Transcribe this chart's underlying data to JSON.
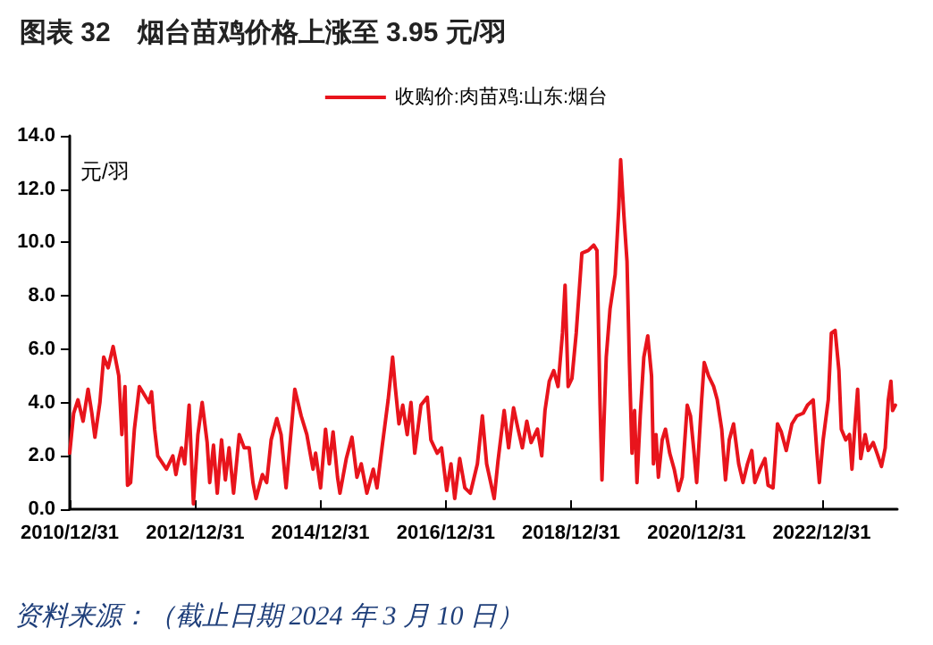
{
  "chart_data": {
    "type": "line",
    "title": "图表 32　烟台苗鸡价格上涨至 3.95 元/羽",
    "ylabel": "元/羽",
    "annotations": [
      "资料来源：（截止日期 2024 年 3 月 10 日）"
    ],
    "xlim": [
      "2010-12-31",
      "2024-03-15"
    ],
    "xticks": [
      {
        "value": "2010-12-31",
        "label": "2010/12/31"
      },
      {
        "value": "2012-12-31",
        "label": "2012/12/31"
      },
      {
        "value": "2014-12-31",
        "label": "2014/12/31"
      },
      {
        "value": "2016-12-31",
        "label": "2016/12/31"
      },
      {
        "value": "2018-12-31",
        "label": "2018/12/31"
      },
      {
        "value": "2020-12-31",
        "label": "2020/12/31"
      },
      {
        "value": "2022-12-31",
        "label": "2022/12/31"
      }
    ],
    "ylim": [
      0,
      14
    ],
    "yticks": [
      {
        "value": 0,
        "label": "0.0"
      },
      {
        "value": 2,
        "label": "2.0"
      },
      {
        "value": 4,
        "label": "4.0"
      },
      {
        "value": 6,
        "label": "6.0"
      },
      {
        "value": 8,
        "label": "8.0"
      },
      {
        "value": 10,
        "label": "10.0"
      },
      {
        "value": 12,
        "label": "12.0"
      },
      {
        "value": 14,
        "label": "14.0"
      }
    ],
    "grid": false,
    "legend": "top",
    "marker": "none",
    "line_style": "solid",
    "series": [
      {
        "name": "收购价:肉苗鸡:山东:烟台",
        "color": "#e8141c",
        "x": [
          "2010-12-31",
          "2011-01-23",
          "2011-02-17",
          "2011-03-19",
          "2011-04-17",
          "2011-05-09",
          "2011-05-27",
          "2011-06-25",
          "2011-07-17",
          "2011-08-12",
          "2011-09-10",
          "2011-10-13",
          "2011-10-31",
          "2011-11-18",
          "2011-12-03",
          "2011-12-21",
          "2012-01-12",
          "2012-02-10",
          "2012-04-06",
          "2012-04-21",
          "2012-05-09",
          "2012-05-27",
          "2012-07-17",
          "2012-08-23",
          "2012-09-10",
          "2012-09-24",
          "2012-10-13",
          "2012-10-31",
          "2012-11-26",
          "2012-12-21",
          "2013-01-16",
          "2013-02-10",
          "2013-03-11",
          "2013-03-26",
          "2013-04-17",
          "2013-05-09",
          "2013-06-03",
          "2013-06-25",
          "2013-07-17",
          "2013-08-12",
          "2013-09-14",
          "2013-10-13",
          "2013-11-11",
          "2013-12-03",
          "2013-12-21",
          "2014-01-27",
          "2014-02-21",
          "2014-03-19",
          "2014-04-21",
          "2014-05-16",
          "2014-06-14",
          "2014-08-04",
          "2014-09-10",
          "2014-10-13",
          "2014-11-18",
          "2014-12-03",
          "2015-01-01",
          "2015-01-30",
          "2015-02-21",
          "2015-03-15",
          "2015-04-10",
          "2015-04-24",
          "2015-05-31",
          "2015-07-03",
          "2015-08-01",
          "2015-08-26",
          "2015-09-28",
          "2015-11-04",
          "2015-11-26",
          "2015-12-25",
          "2016-01-30",
          "2016-02-25",
          "2016-03-11",
          "2016-04-02",
          "2016-04-24",
          "2016-05-20",
          "2016-06-11",
          "2016-07-03",
          "2016-08-08",
          "2016-09-14",
          "2016-10-05",
          "2016-11-11",
          "2016-12-06",
          "2017-01-05",
          "2017-01-30",
          "2017-02-21",
          "2017-03-22",
          "2017-04-21",
          "2017-05-23",
          "2017-07-03",
          "2017-08-01",
          "2017-08-26",
          "2017-10-09",
          "2017-10-31",
          "2017-12-06",
          "2018-01-01",
          "2018-01-30",
          "2018-02-25",
          "2018-03-22",
          "2018-04-17",
          "2018-05-12",
          "2018-06-18",
          "2018-07-13",
          "2018-08-01",
          "2018-08-26",
          "2018-09-21",
          "2018-10-16",
          "2018-11-11",
          "2018-11-26",
          "2018-12-14",
          "2019-01-05",
          "2019-01-30",
          "2019-03-04",
          "2019-04-10",
          "2019-05-12",
          "2019-05-31",
          "2019-06-18",
          "2019-06-29",
          "2019-07-24",
          "2019-08-15",
          "2019-09-14",
          "2019-10-05",
          "2019-10-16",
          "2019-11-04",
          "2019-11-22",
          "2019-12-06",
          "2019-12-21",
          "2020-01-05",
          "2020-01-19",
          "2020-02-07",
          "2020-02-28",
          "2020-03-22",
          "2020-04-13",
          "2020-04-24",
          "2020-05-09",
          "2020-05-23",
          "2020-06-14",
          "2020-07-03",
          "2020-07-28",
          "2020-08-23",
          "2020-09-17",
          "2020-10-09",
          "2020-11-07",
          "2020-11-26",
          "2020-12-17",
          "2021-01-01",
          "2021-01-30",
          "2021-02-14",
          "2021-03-11",
          "2021-04-10",
          "2021-05-01",
          "2021-05-27",
          "2021-06-18",
          "2021-07-10",
          "2021-08-04",
          "2021-09-03",
          "2021-09-28",
          "2021-10-24",
          "2021-11-18",
          "2021-12-06",
          "2022-01-05",
          "2022-02-03",
          "2022-02-21",
          "2022-03-22",
          "2022-04-17",
          "2022-05-09",
          "2022-06-07",
          "2022-07-10",
          "2022-08-08",
          "2022-09-14",
          "2022-10-09",
          "2022-11-11",
          "2022-12-03",
          "2022-12-17",
          "2023-01-08",
          "2023-02-07",
          "2023-02-25",
          "2023-03-19",
          "2023-04-10",
          "2023-04-24",
          "2023-05-20",
          "2023-06-11",
          "2023-06-25",
          "2023-07-13",
          "2023-07-28",
          "2023-08-15",
          "2023-09-10",
          "2023-09-28",
          "2023-10-27",
          "2023-11-18",
          "2023-12-14",
          "2024-01-05",
          "2024-01-23",
          "2024-02-07",
          "2024-02-17",
          "2024-03-04"
        ],
        "values": [
          2.1,
          3.6,
          4.1,
          3.3,
          4.5,
          3.6,
          2.7,
          4.0,
          5.7,
          5.3,
          6.1,
          5.0,
          2.8,
          4.6,
          0.9,
          1.0,
          3.0,
          4.6,
          4.0,
          4.4,
          3.0,
          2.0,
          1.5,
          2.0,
          1.3,
          1.8,
          2.3,
          1.7,
          3.9,
          0.2,
          2.8,
          4.0,
          2.5,
          1.0,
          2.4,
          0.6,
          2.6,
          1.1,
          2.3,
          0.6,
          2.8,
          2.3,
          2.3,
          1.0,
          0.4,
          1.3,
          1.0,
          2.6,
          3.4,
          2.8,
          0.8,
          4.5,
          3.5,
          2.8,
          1.5,
          2.1,
          0.8,
          3.0,
          1.7,
          2.9,
          1.2,
          0.6,
          1.9,
          2.7,
          1.2,
          1.7,
          0.6,
          1.5,
          0.8,
          2.3,
          4.1,
          5.7,
          4.6,
          3.2,
          3.9,
          2.8,
          4.0,
          2.1,
          3.9,
          4.2,
          2.6,
          2.1,
          2.3,
          0.7,
          1.7,
          0.4,
          1.9,
          0.8,
          0.6,
          1.7,
          3.5,
          1.7,
          0.4,
          1.8,
          3.7,
          2.3,
          3.8,
          3.0,
          2.3,
          3.3,
          2.5,
          3.0,
          2.0,
          3.7,
          4.8,
          5.2,
          4.6,
          6.6,
          8.4,
          4.6,
          4.9,
          6.6,
          9.6,
          9.7,
          9.9,
          9.7,
          3.9,
          1.1,
          5.7,
          7.5,
          8.8,
          11.3,
          13.1,
          11.0,
          9.3,
          5.5,
          2.1,
          3.7,
          1.0,
          3.5,
          5.7,
          6.5,
          5.0,
          1.7,
          2.8,
          1.2,
          2.6,
          3.0,
          2.1,
          1.5,
          0.7,
          1.2,
          3.9,
          3.5,
          2.1,
          1.0,
          4.1,
          5.5,
          5.0,
          4.6,
          4.1,
          3.0,
          1.1,
          2.6,
          3.2,
          1.7,
          1.0,
          1.7,
          2.2,
          1.0,
          1.5,
          1.9,
          0.9,
          0.8,
          3.2,
          2.9,
          2.2,
          3.2,
          3.5,
          3.6,
          3.9,
          4.1,
          2.1,
          1.0,
          2.6,
          4.1,
          6.6,
          6.7,
          5.2,
          3.0,
          2.6,
          2.8,
          1.5,
          3.2,
          4.5,
          1.9,
          2.8,
          2.2,
          2.5,
          2.1,
          1.6,
          2.3,
          4.1,
          4.8,
          3.7,
          3.9
        ]
      }
    ]
  }
}
